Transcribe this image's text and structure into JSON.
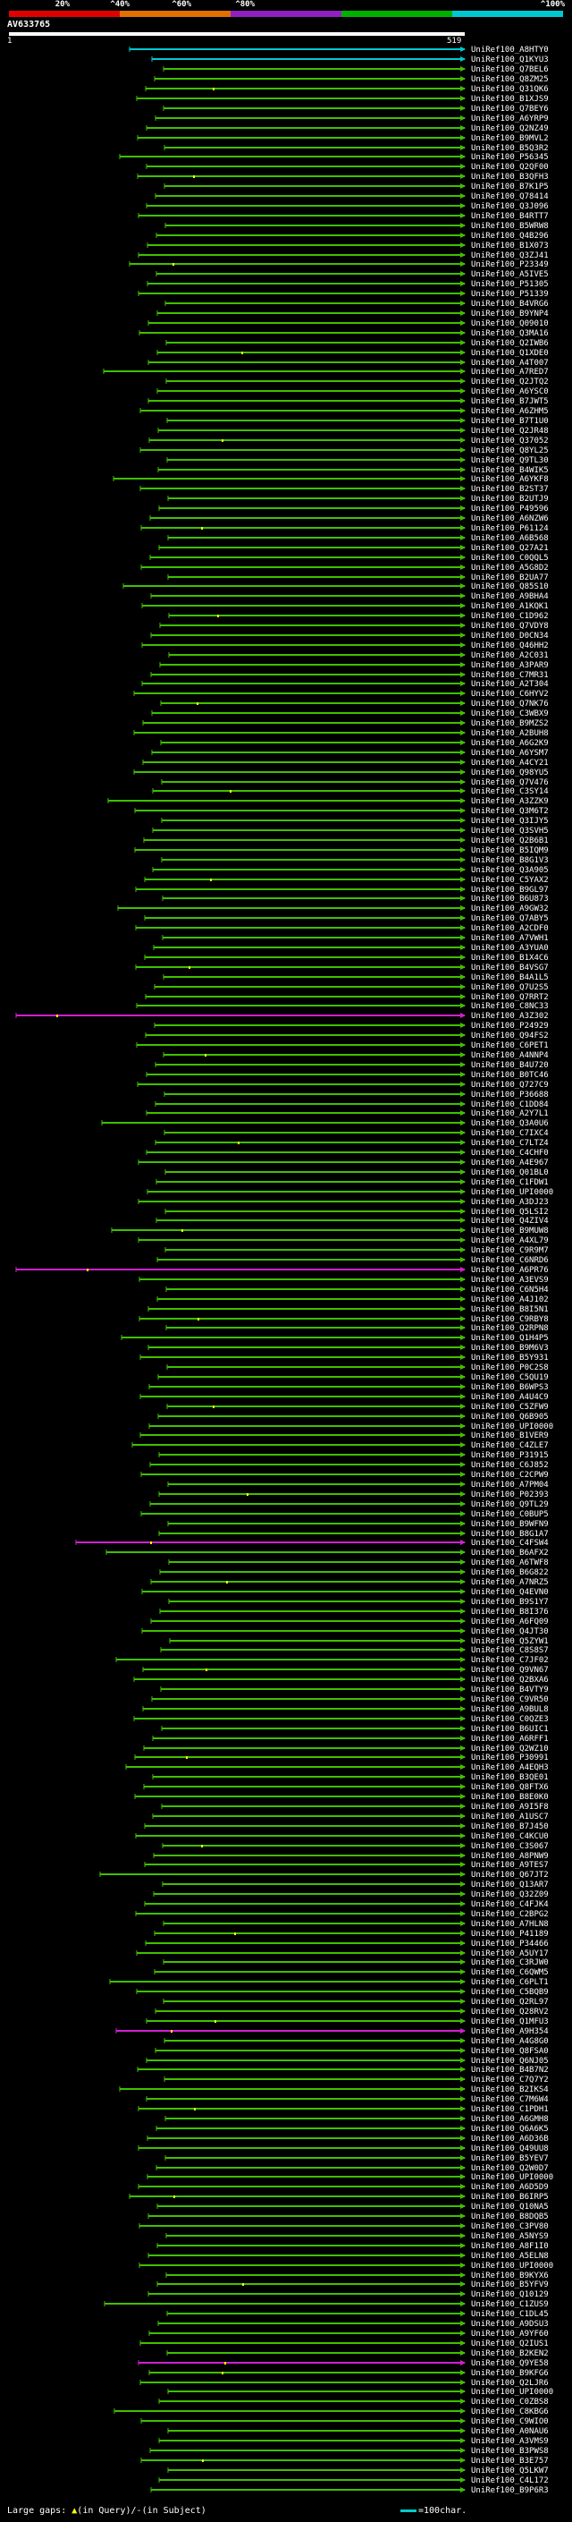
{
  "ruler": {
    "labels": [
      "20%",
      "^40%",
      "^60%",
      "^80%",
      "^100%"
    ],
    "colors": [
      "#e00000",
      "#e07000",
      "#9020c0",
      "#00b000",
      "#00c8d0"
    ]
  },
  "query": {
    "title": "AV633765",
    "scale_start": "1",
    "scale_end": "519"
  },
  "legend": {
    "large_gaps_label": "Large gaps:",
    "query_gap_symbol": "▲",
    "query_gap_text": "(in Query)/",
    "subject_gap_symbol": "-",
    "subject_gap_text": "(in Subject)",
    "scale_text": "=100char."
  },
  "line_colors": {
    "green": "#40c000",
    "cyan": "#00c8d0",
    "magenta": "#d020d0",
    "gap_mark": "#ffff00"
  },
  "hits": [
    "UniRef100_A8HTY0",
    "UniRef100_Q1KYU3",
    "UniRef100_Q7BEL6",
    "UniRef100_Q8ZM25",
    "UniRef100_Q31QK6",
    "UniRef100_B1XJS9",
    "UniRef100_Q7BEY6",
    "UniRef100_A6YRP9",
    "UniRef100_Q2NZ49",
    "UniRef100_B9MVL2",
    "UniRef100_B5Q3R2",
    "UniRef100_P56345",
    "UniRef100_Q2QF00",
    "UniRef100_B3QFH3",
    "UniRef100_B7K1P5",
    "UniRef100_Q78414",
    "UniRef100_Q3J096",
    "UniRef100_B4RTT7",
    "UniRef100_B5WRW8",
    "UniRef100_Q4B296",
    "UniRef100_B1X073",
    "UniRef100_Q3ZJ41",
    "UniRef100_P23349",
    "UniRef100_A5IVE5",
    "UniRef100_P51305",
    "UniRef100_P51339",
    "UniRef100_B4VRG6",
    "UniRef100_B9YNP4",
    "UniRef100_Q09010",
    "UniRef100_Q3MA16",
    "UniRef100_Q2IWB6",
    "UniRef100_Q1XDE0",
    "UniRef100_A4T007",
    "UniRef100_A7RED7",
    "UniRef100_Q2JTQ2",
    "UniRef100_A6YSC0",
    "UniRef100_B7JWT5",
    "UniRef100_A6ZHM5",
    "UniRef100_B7T1U0",
    "UniRef100_Q2JR48",
    "UniRef100_Q37052",
    "UniRef100_Q8YL25",
    "UniRef100_Q9TL30",
    "UniRef100_B4WIK5",
    "UniRef100_A6YKF8",
    "UniRef100_B2ST37",
    "UniRef100_B2UTJ9",
    "UniRef100_P49596",
    "UniRef100_A6NZW6",
    "UniRef100_P61124",
    "UniRef100_A6B568",
    "UniRef100_Q27A21",
    "UniRef100_C0QQL5",
    "UniRef100_A5G8D2",
    "UniRef100_B2UA77",
    "UniRef100_Q85S10",
    "UniRef100_A9BHA4",
    "UniRef100_A1KQK1",
    "UniRef100_C1D962",
    "UniRef100_Q7VDY8",
    "UniRef100_D0CN34",
    "UniRef100_Q46HH2",
    "UniRef100_A2C031",
    "UniRef100_A3PAR9",
    "UniRef100_C7MR31",
    "UniRef100_A2T304",
    "UniRef100_C6HYV2",
    "UniRef100_Q7NK76",
    "UniRef100_C3WBX9",
    "UniRef100_B9MZS2",
    "UniRef100_A2BUH8",
    "UniRef100_A6G2K9",
    "UniRef100_A6YSM7",
    "UniRef100_A4CY21",
    "UniRef100_Q98YU5",
    "UniRef100_Q7V476",
    "UniRef100_C3SY14",
    "UniRef100_A3ZZK9",
    "UniRef100_Q3M6T2",
    "UniRef100_Q3IJY5",
    "UniRef100_Q3SVH5",
    "UniRef100_Q2B6B1",
    "UniRef100_B5IQM9",
    "UniRef100_B8G1V3",
    "UniRef100_Q3A905",
    "UniRef100_C5YAX2",
    "UniRef100_B9GL97",
    "UniRef100_B6U873",
    "UniRef100_A9GW32",
    "UniRef100_Q7ABY5",
    "UniRef100_A2CDF0",
    "UniRef100_A7VWH1",
    "UniRef100_A3YUA0",
    "UniRef100_B1X4C6",
    "UniRef100_B4VSG7",
    "UniRef100_B4A1L5",
    "UniRef100_Q7U2S5",
    "UniRef100_Q7RRT2",
    "UniRef100_C8NC33",
    "UniRef100_A3Z302",
    "UniRef100_P24929",
    "UniRef100_Q94FS2",
    "UniRef100_C6PET1",
    "UniRef100_A4NNP4",
    "UniRef100_B4U720",
    "UniRef100_B0TC46",
    "UniRef100_Q727C9",
    "UniRef100_P36688",
    "UniRef100_C1DD84",
    "UniRef100_A2Y7L1",
    "UniRef100_Q3A0U6",
    "UniRef100_C7IXC4",
    "UniRef100_C7LTZ4",
    "UniRef100_C4CHF0",
    "UniRef100_A4E967",
    "UniRef100_Q01BL0",
    "UniRef100_C1FDW1",
    "UniRef100_UPI0000",
    "UniRef100_A3DJ23",
    "UniRef100_Q5LSI2",
    "UniRef100_Q4ZIV4",
    "UniRef100_B9MUW8",
    "UniRef100_A4XL79",
    "UniRef100_C9R9M7",
    "UniRef100_C6NRD6",
    "UniRef100_A6PR76",
    "UniRef100_A3EVS9",
    "UniRef100_C6N5H4",
    "UniRef100_A4J102",
    "UniRef100_B8I5N1",
    "UniRef100_C9RBY8",
    "UniRef100_Q2RPN8",
    "UniRef100_Q1H4P5",
    "UniRef100_B9M6V3",
    "UniRef100_B5Y931",
    "UniRef100_P0C2S8",
    "UniRef100_C5QU19",
    "UniRef100_B6WPS3",
    "UniRef100_A4U4C9",
    "UniRef100_C5ZFW9",
    "UniRef100_Q6B905",
    "UniRef100_UPI0000",
    "UniRef100_B1VER9",
    "UniRef100_C4ZLE7",
    "UniRef100_P31915",
    "UniRef100_C6J852",
    "UniRef100_C2CPW9",
    "UniRef100_A7PM04",
    "UniRef100_P02393",
    "UniRef100_Q9TL29",
    "UniRef100_C0BUP5",
    "UniRef100_B9WFN9",
    "UniRef100_B8G1A7",
    "UniRef100_C4FSW4",
    "UniRef100_B6AFX2",
    "UniRef100_A6TWF8",
    "UniRef100_B6G822",
    "UniRef100_A7NRZ5",
    "UniRef100_Q4EVN0",
    "UniRef100_B9S1Y7",
    "UniRef100_B8I376",
    "UniRef100_A6FQ09",
    "UniRef100_Q4JT30",
    "UniRef100_Q5ZYW1",
    "UniRef100_C8S8S7",
    "UniRef100_C7JF02",
    "UniRef100_Q9VN67",
    "UniRef100_Q2BXA6",
    "UniRef100_B4VTY9",
    "UniRef100_C9VR50",
    "UniRef100_A9BUL8",
    "UniRef100_C0QZE3",
    "UniRef100_B6UIC1",
    "UniRef100_A6RFF1",
    "UniRef100_Q2WZ10",
    "UniRef100_P30991",
    "UniRef100_A4EQH3",
    "UniRef100_B3QE01",
    "UniRef100_Q8FTX6",
    "UniRef100_B8E0K0",
    "UniRef100_A9I5F8",
    "UniRef100_A1USC7",
    "UniRef100_B7J450",
    "UniRef100_C4KCU0",
    "UniRef100_C3S067",
    "UniRef100_A8PNW9",
    "UniRef100_A9TES7",
    "UniRef100_Q67JT2",
    "UniRef100_Q13AR7",
    "UniRef100_Q32Z09",
    "UniRef100_C4FJK4",
    "UniRef100_C2BPG2",
    "UniRef100_A7HLN8",
    "UniRef100_P41189",
    "UniRef100_P34466",
    "UniRef100_A5UY17",
    "UniRef100_C3RJW0",
    "UniRef100_C6QWM5",
    "UniRef100_C6PLT1",
    "UniRef100_C5BQB9",
    "UniRef100_Q2RL97",
    "UniRef100_Q28RV2",
    "UniRef100_Q1MFU3",
    "UniRef100_A9H354",
    "UniRef100_A4G8G0",
    "UniRef100_Q8FSA0",
    "UniRef100_Q6NJ05",
    "UniRef100_B4B7N2",
    "UniRef100_C7Q7Y2",
    "UniRef100_B2IKS4",
    "UniRef100_C7M6W4",
    "UniRef100_C1PDH1",
    "UniRef100_A6GMH8",
    "UniRef100_Q6A6K5",
    "UniRef100_A6D36B",
    "UniRef100_Q49UU8",
    "UniRef100_B5YEV7",
    "UniRef100_Q2W0D7",
    "UniRef100_UPI0000",
    "UniRef100_A6D5D9",
    "UniRef100_B6IRP5",
    "UniRef100_Q10NA5",
    "UniRef100_B8DQB5",
    "UniRef100_C3PV80",
    "UniRef100_A5NYS9",
    "UniRef100_A8F1I0",
    "UniRef100_A5ELN8",
    "UniRef100_UPI0000",
    "UniRef100_B9KYX6",
    "UniRef100_B5YFV9",
    "UniRef100_Q10129",
    "UniRef100_C1ZUS9",
    "UniRef100_C1DL45",
    "UniRef100_A9DSU3",
    "UniRef100_A9YF60",
    "UniRef100_Q2IUS1",
    "UniRef100_B2KEN2",
    "UniRef100_Q9YE58",
    "UniRef100_B9KFG6",
    "UniRef100_Q2LJR6",
    "UniRef100_UPI0000",
    "UniRef100_C0ZBS8",
    "UniRef100_C8KBG6",
    "UniRef100_C9WIO0",
    "UniRef100_A0NAU6",
    "UniRef100_A3VMS9",
    "UniRef100_B3PWS8",
    "UniRef100_B3E757",
    "UniRef100_Q5LKW7",
    "UniRef100_C4L172",
    "UniRef100_B9P6R3"
  ]
}
